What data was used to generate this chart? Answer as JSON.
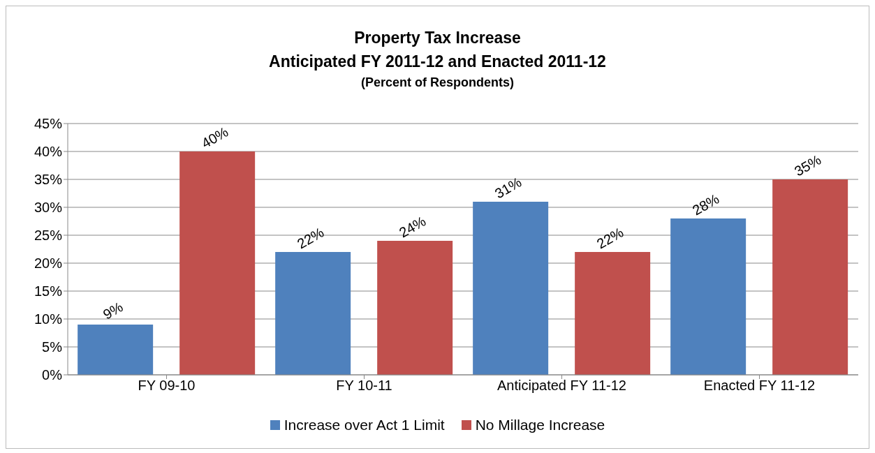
{
  "chart_data": {
    "type": "bar",
    "title": "Property Tax Increase\nAnticipated FY 2011-12 and Enacted 2011-12",
    "subtitle": "(Percent of Respondents)",
    "categories": [
      "FY 09-10",
      "FY 10-11",
      "Anticipated FY 11-12",
      "Enacted FY 11-12"
    ],
    "series": [
      {
        "name": "Increase over Act 1 Limit",
        "color": "#4f81bd",
        "values": [
          9,
          22,
          31,
          28
        ],
        "value_labels": [
          "9%",
          "22%",
          "31%",
          "28%"
        ]
      },
      {
        "name": "No Millage Increase",
        "color": "#c0504d",
        "values": [
          40,
          24,
          22,
          35
        ],
        "value_labels": [
          "40%",
          "24%",
          "22%",
          "35%"
        ]
      }
    ],
    "ylim": [
      0,
      45
    ],
    "yticks": [
      {
        "value": 0,
        "label": "0%"
      },
      {
        "value": 5,
        "label": "5%"
      },
      {
        "value": 10,
        "label": "10%"
      },
      {
        "value": 15,
        "label": "15%"
      },
      {
        "value": 20,
        "label": "20%"
      },
      {
        "value": 25,
        "label": "25%"
      },
      {
        "value": 30,
        "label": "30%"
      },
      {
        "value": 35,
        "label": "35%"
      },
      {
        "value": 40,
        "label": "40%"
      },
      {
        "value": 45,
        "label": "45%"
      }
    ],
    "grid": "y",
    "legend": "bottom"
  }
}
